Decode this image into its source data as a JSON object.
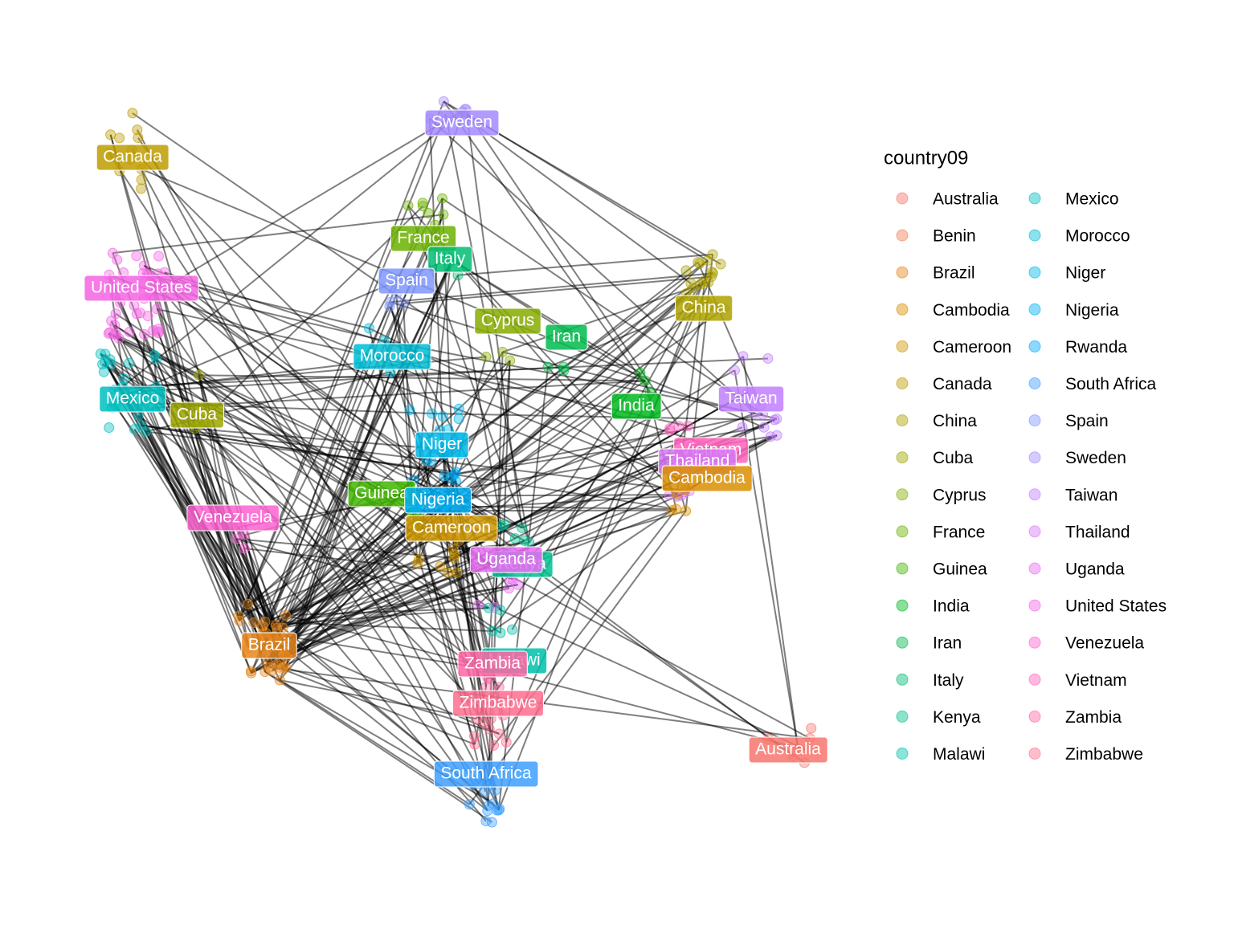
{
  "legend": {
    "title": "country09",
    "items": [
      {
        "label": "Australia",
        "color": "#F8766D"
      },
      {
        "label": "Benin",
        "color": "#F17E55"
      },
      {
        "label": "Brazil",
        "color": "#E7861B"
      },
      {
        "label": "Cambodia",
        "color": "#DB8E00"
      },
      {
        "label": "Cameroon",
        "color": "#CE9600"
      },
      {
        "label": "Canada",
        "color": "#BE9C00"
      },
      {
        "label": "China",
        "color": "#AEA200"
      },
      {
        "label": "Cuba",
        "color": "#9CA700"
      },
      {
        "label": "Cyprus",
        "color": "#86AC00"
      },
      {
        "label": "France",
        "color": "#6BB100"
      },
      {
        "label": "Guinea",
        "color": "#40B500"
      },
      {
        "label": "India",
        "color": "#00B81F"
      },
      {
        "label": "Iran",
        "color": "#00BB4E"
      },
      {
        "label": "Italy",
        "color": "#00BD73"
      },
      {
        "label": "Kenya",
        "color": "#00BF90"
      },
      {
        "label": "Malawi",
        "color": "#00C0AA"
      },
      {
        "label": "Mexico",
        "color": "#00BFC1"
      },
      {
        "label": "Morocco",
        "color": "#00BCD5"
      },
      {
        "label": "Niger",
        "color": "#00B7E7"
      },
      {
        "label": "Nigeria",
        "color": "#00B0F6"
      },
      {
        "label": "Rwanda",
        "color": "#00A8FF"
      },
      {
        "label": "South Africa",
        "color": "#3D9FFF"
      },
      {
        "label": "Spain",
        "color": "#7F96FF"
      },
      {
        "label": "Sweden",
        "color": "#A58AFF"
      },
      {
        "label": "Taiwan",
        "color": "#C17FFF"
      },
      {
        "label": "Thailand",
        "color": "#D676F4"
      },
      {
        "label": "Uganda",
        "color": "#E76BF3"
      },
      {
        "label": "United States",
        "color": "#F564E3"
      },
      {
        "label": "Venezuela",
        "color": "#FD61D1"
      },
      {
        "label": "Vietnam",
        "color": "#FF62BC"
      },
      {
        "label": "Zambia",
        "color": "#FF66A5"
      },
      {
        "label": "Zimbabwe",
        "color": "#FF6C8E"
      }
    ]
  }
}
